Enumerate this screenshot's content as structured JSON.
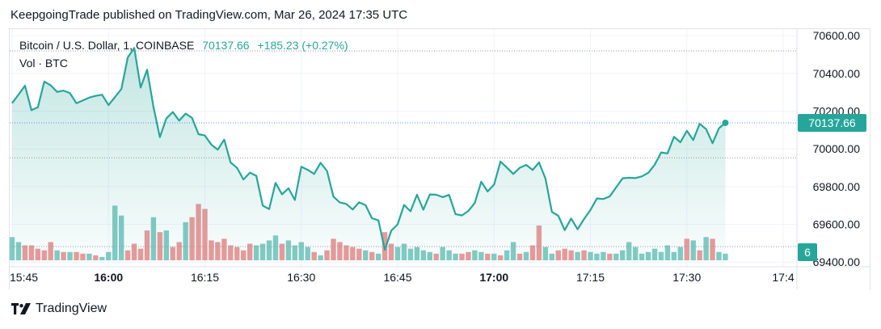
{
  "header": {
    "text": "KeepgoingTrade published on TradingView.com, Mar 26, 2024 17:35 UTC"
  },
  "legend": {
    "symbol": "Bitcoin / U.S. Dollar, 1, COINBASE",
    "price": "70137.66",
    "change": "+185.23 (+0.27%)",
    "volume_label": "Vol · BTC"
  },
  "price_tag": "70137.66",
  "volume_tag": "6",
  "footer": {
    "brand": "TradingView"
  },
  "colors": {
    "line": "#26a69a",
    "fill": "#26a69a",
    "volume_up": "#82cbc4",
    "volume_down": "#eb9a9a",
    "price_tag_bg": "#26a69a",
    "grid": "#f0f3fa"
  },
  "chart_data": {
    "type": "area",
    "title": "Bitcoin / U.S. Dollar, 1, COINBASE",
    "y_ticks": [
      "70600.00",
      "70400.00",
      "70200.00",
      "70000.00",
      "69800.00",
      "69600.00",
      "69400.00"
    ],
    "ylim": [
      69375,
      70635
    ],
    "x_ticks": [
      "15:45",
      "16:00",
      "16:15",
      "16:30",
      "16:45",
      "17:00",
      "17:15",
      "17:30",
      "17:4"
    ],
    "x_tick_minutes": [
      0,
      15,
      30,
      45,
      60,
      75,
      90,
      105,
      120
    ],
    "bold_x_ticks": [
      "16:00",
      "17:00"
    ],
    "last_price": 70137.66,
    "prev_close": 69952.43,
    "series": [
      {
        "values": [
          70242,
          70288,
          70335,
          70205,
          70220,
          70357,
          70337,
          70302,
          70309,
          70296,
          70242,
          70257,
          70272,
          70281,
          70287,
          70232,
          70274,
          70318,
          70485,
          70535,
          70325,
          70420,
          70222,
          70062,
          70162,
          70195,
          70150,
          70187,
          70164,
          70078,
          70071,
          70022,
          69996,
          70049,
          69928,
          69899,
          69838,
          69874,
          69857,
          69699,
          69681,
          69820,
          69759,
          69791,
          69729,
          69905,
          69889,
          69867,
          69926,
          69883,
          69747,
          69716,
          69708,
          69679,
          69717,
          69701,
          69632,
          69621,
          69465,
          69566,
          69600,
          69703,
          69669,
          69757,
          69677,
          69758,
          69757,
          69744,
          69756,
          69654,
          69647,
          69671,
          69713,
          69826,
          69774,
          69811,
          69933,
          69901,
          69867,
          69900,
          69915,
          69888,
          69928,
          69842,
          69666,
          69645,
          69569,
          69631,
          69574,
          69628,
          69676,
          69737,
          69734,
          69748,
          69796,
          69844,
          69847,
          69845,
          69854,
          69873,
          69916,
          69981,
          69976,
          70064,
          70035,
          70096,
          70047,
          70133,
          70105,
          70030,
          70109,
          70138
        ]
      }
    ],
    "volume": [
      {
        "v": 1.4,
        "up": true
      },
      {
        "v": 1.1,
        "up": true
      },
      {
        "v": 0.9,
        "up": false
      },
      {
        "v": 0.9,
        "up": false
      },
      {
        "v": 0.7,
        "up": false
      },
      {
        "v": 0.6,
        "up": false
      },
      {
        "v": 1.1,
        "up": false
      },
      {
        "v": 0.6,
        "up": true
      },
      {
        "v": 0.5,
        "up": false
      },
      {
        "v": 0.5,
        "up": true
      },
      {
        "v": 0.5,
        "up": false
      },
      {
        "v": 0.4,
        "up": false
      },
      {
        "v": 0.4,
        "up": true
      },
      {
        "v": 0.3,
        "up": false
      },
      {
        "v": 0.2,
        "up": true
      },
      {
        "v": 0.5,
        "up": true
      },
      {
        "v": 3.3,
        "up": true
      },
      {
        "v": 2.7,
        "up": true
      },
      {
        "v": 0.6,
        "up": false
      },
      {
        "v": 1.0,
        "up": false
      },
      {
        "v": 0.7,
        "up": false
      },
      {
        "v": 1.8,
        "up": false
      },
      {
        "v": 2.6,
        "up": true
      },
      {
        "v": 1.7,
        "up": false
      },
      {
        "v": 1.8,
        "up": true
      },
      {
        "v": 0.8,
        "up": false
      },
      {
        "v": 1.1,
        "up": false
      },
      {
        "v": 2.3,
        "up": true
      },
      {
        "v": 2.6,
        "up": false
      },
      {
        "v": 3.4,
        "up": false
      },
      {
        "v": 3.1,
        "up": false
      },
      {
        "v": 1.2,
        "up": false
      },
      {
        "v": 1.1,
        "up": false
      },
      {
        "v": 1.3,
        "up": false
      },
      {
        "v": 0.9,
        "up": false
      },
      {
        "v": 0.8,
        "up": false
      },
      {
        "v": 0.6,
        "up": false
      },
      {
        "v": 1.0,
        "up": false
      },
      {
        "v": 0.9,
        "up": true
      },
      {
        "v": 1.0,
        "up": true
      },
      {
        "v": 1.2,
        "up": true
      },
      {
        "v": 1.5,
        "up": true
      },
      {
        "v": 1.0,
        "up": false
      },
      {
        "v": 1.2,
        "up": true
      },
      {
        "v": 0.9,
        "up": true
      },
      {
        "v": 1.1,
        "up": true
      },
      {
        "v": 0.8,
        "up": true
      },
      {
        "v": 0.5,
        "up": false
      },
      {
        "v": 0.3,
        "up": true
      },
      {
        "v": 0.6,
        "up": false
      },
      {
        "v": 1.3,
        "up": false
      },
      {
        "v": 1.1,
        "up": false
      },
      {
        "v": 0.9,
        "up": false
      },
      {
        "v": 0.8,
        "up": false
      },
      {
        "v": 0.7,
        "up": false
      },
      {
        "v": 0.6,
        "up": true
      },
      {
        "v": 0.5,
        "up": false
      },
      {
        "v": 0.4,
        "up": true
      },
      {
        "v": 1.7,
        "up": false
      },
      {
        "v": 1.0,
        "up": false
      },
      {
        "v": 0.8,
        "up": true
      },
      {
        "v": 1.0,
        "up": true
      },
      {
        "v": 0.7,
        "up": true
      },
      {
        "v": 0.8,
        "up": true
      },
      {
        "v": 0.6,
        "up": true
      },
      {
        "v": 0.5,
        "up": true
      },
      {
        "v": 0.4,
        "up": false
      },
      {
        "v": 0.8,
        "up": true
      },
      {
        "v": 0.6,
        "up": true
      },
      {
        "v": 0.4,
        "up": true
      },
      {
        "v": 0.4,
        "up": false
      },
      {
        "v": 0.5,
        "up": false
      },
      {
        "v": 0.6,
        "up": true
      },
      {
        "v": 0.5,
        "up": true
      },
      {
        "v": 0.4,
        "up": false
      },
      {
        "v": 0.4,
        "up": true
      },
      {
        "v": 0.3,
        "up": false
      },
      {
        "v": 0.6,
        "up": true
      },
      {
        "v": 1.1,
        "up": true
      },
      {
        "v": 0.4,
        "up": false
      },
      {
        "v": 0.5,
        "up": true
      },
      {
        "v": 0.9,
        "up": false
      },
      {
        "v": 2.1,
        "up": false
      },
      {
        "v": 0.8,
        "up": true
      },
      {
        "v": 0.4,
        "up": true
      },
      {
        "v": 0.6,
        "up": false
      },
      {
        "v": 0.7,
        "up": false
      },
      {
        "v": 0.6,
        "up": false
      },
      {
        "v": 0.5,
        "up": true
      },
      {
        "v": 0.6,
        "up": false
      },
      {
        "v": 0.5,
        "up": true
      },
      {
        "v": 0.4,
        "up": true
      },
      {
        "v": 0.5,
        "up": true
      },
      {
        "v": 0.4,
        "up": false
      },
      {
        "v": 0.4,
        "up": true
      },
      {
        "v": 0.6,
        "up": true
      },
      {
        "v": 1.1,
        "up": true
      },
      {
        "v": 0.8,
        "up": true
      },
      {
        "v": 0.4,
        "up": true
      },
      {
        "v": 0.5,
        "up": true
      },
      {
        "v": 0.7,
        "up": true
      },
      {
        "v": 0.5,
        "up": true
      },
      {
        "v": 0.9,
        "up": true
      },
      {
        "v": 0.5,
        "up": true
      },
      {
        "v": 0.8,
        "up": true
      },
      {
        "v": 1.3,
        "up": false
      },
      {
        "v": 1.2,
        "up": true
      },
      {
        "v": 0.6,
        "up": false
      },
      {
        "v": 1.4,
        "up": true
      },
      {
        "v": 1.3,
        "up": false
      },
      {
        "v": 0.5,
        "up": true
      },
      {
        "v": 0.4,
        "up": true
      }
    ],
    "grid": true
  }
}
